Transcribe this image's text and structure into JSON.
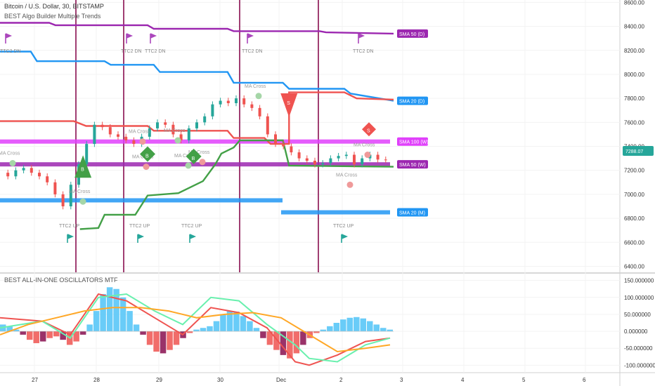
{
  "header": {
    "title": "Bitcoin / U.S. Dollar, 30, BITSTAMP",
    "subtitle": "BEST Algo Builder Multiple Trends"
  },
  "oscillator": {
    "title": "BEST ALL-IN-ONE OSCILLATORS MTF"
  },
  "price_label": {
    "value": "7288.07",
    "color": "#26a69a"
  },
  "colors": {
    "bull": "#26a69a",
    "bear": "#ef5350",
    "sma50d": "#9c27b0",
    "sma20d": "#2196f3",
    "sma100w": "#e040fb",
    "sma50w": "#9c27b0",
    "sma20m": "#2196f3",
    "vline": "#880e4f"
  },
  "chart_data": [
    {
      "type": "line",
      "name": "price",
      "x_ticks": [
        "27",
        "28",
        "29",
        "30",
        "Dec",
        "2",
        "3",
        "4",
        "5",
        "6"
      ],
      "y_ticks": [
        6400,
        6600,
        6800,
        7000,
        7200,
        7400,
        7600,
        7800,
        8000,
        8200,
        8400,
        8600
      ],
      "y_tick_labels": [
        "6400.00",
        "6600.00",
        "6800.00",
        "7000.00",
        "7200.00",
        "7400.00",
        "7600.00",
        "7800.00",
        "8000.00",
        "8200.00",
        "8400.00",
        "8600.00"
      ],
      "ylim": [
        6350,
        8620
      ],
      "close": [
        7180,
        7150,
        7200,
        7220,
        7180,
        7150,
        7100,
        7000,
        6900,
        7080,
        7250,
        7420,
        7580,
        7560,
        7500,
        7480,
        7450,
        7420,
        7480,
        7550,
        7600,
        7580,
        7500,
        7450,
        7550,
        7600,
        7650,
        7750,
        7780,
        7760,
        7800,
        7750,
        7720,
        7650,
        7500,
        7420,
        7400,
        7350,
        7300,
        7280,
        7250,
        7260,
        7300,
        7320,
        7330,
        7250,
        7300,
        7330,
        7290,
        7288
      ],
      "lines": [
        {
          "label": "SMA 50 (D)",
          "points": [
            [
              0,
              8430
            ],
            [
              8,
              8430
            ],
            [
              9,
              8410
            ],
            [
              24,
              8410
            ],
            [
              25,
              8380
            ],
            [
              37,
              8380
            ],
            [
              38,
              8360
            ],
            [
              52,
              8360
            ],
            [
              53,
              8350
            ],
            [
              64,
              8340
            ]
          ]
        },
        {
          "label": "SMA 20 (D)",
          "points": [
            [
              0,
              8190
            ],
            [
              5,
              8190
            ],
            [
              6,
              8110
            ],
            [
              17,
              8110
            ],
            [
              18,
              8080
            ],
            [
              25,
              8080
            ],
            [
              26,
              8020
            ],
            [
              37,
              8020
            ],
            [
              38,
              7930
            ],
            [
              46,
              7930
            ],
            [
              47,
              7880
            ],
            [
              56,
              7880
            ],
            [
              57,
              7840
            ],
            [
              64,
              7780
            ]
          ]
        },
        {
          "label": "",
          "points": [
            [
              0,
              7610
            ],
            [
              12,
              7610
            ],
            [
              14,
              7570
            ],
            [
              24,
              7570
            ],
            [
              25,
              7530
            ],
            [
              37,
              7530
            ],
            [
              38,
              7470
            ],
            [
              43,
              7470
            ],
            [
              44,
              7420
            ],
            [
              47,
              7420
            ],
            [
              47,
              7850
            ],
            [
              56,
              7850
            ],
            [
              58,
              7800
            ],
            [
              64,
              7790
            ]
          ]
        },
        {
          "label": "",
          "points": [
            [
              13,
              6710
            ],
            [
              16,
              6720
            ],
            [
              17,
              6830
            ],
            [
              22,
              6830
            ],
            [
              24,
              6990
            ],
            [
              29,
              7010
            ],
            [
              33,
              7110
            ],
            [
              35,
              7250
            ],
            [
              36,
              7340
            ],
            [
              38,
              7390
            ],
            [
              39,
              7450
            ],
            [
              46,
              7450
            ],
            [
              47,
              7240
            ],
            [
              64,
              7230
            ]
          ]
        }
      ],
      "levels": [
        {
          "label": "SMA 100 (W)",
          "value": 7440
        },
        {
          "label": "SMA 50 (W)",
          "value": 7250
        },
        {
          "label": "SMA 20 (M)",
          "value": 6950
        }
      ],
      "signals": [
        {
          "type": "S",
          "x": 47,
          "value": 7760
        },
        {
          "type": "S",
          "x": 60,
          "value": 7530
        },
        {
          "type": "B",
          "x": 13.5,
          "value": 7220
        },
        {
          "type": "B",
          "x": 24,
          "value": 7330
        },
        {
          "type": "B",
          "x": 31.5,
          "value": 7310
        }
      ],
      "annotations": [
        "MA Cross",
        "TTC2 DN",
        "TTC2 UP"
      ]
    },
    {
      "type": "line",
      "name": "oscillator",
      "y_ticks": [
        150,
        100,
        50,
        0,
        -50,
        -100
      ],
      "y_tick_labels": [
        "150.000000",
        "100.000000",
        "50.000000",
        "0.000000",
        "-50.000000",
        "-100.000000"
      ],
      "ylim": [
        -120,
        170
      ],
      "histogram": [
        20,
        15,
        5,
        -10,
        -25,
        -35,
        -30,
        -20,
        -15,
        -25,
        -40,
        -30,
        -10,
        20,
        60,
        110,
        130,
        125,
        100,
        60,
        20,
        -10,
        -40,
        -60,
        -65,
        -55,
        -40,
        -20,
        -5,
        5,
        10,
        15,
        30,
        50,
        60,
        58,
        45,
        30,
        10,
        -20,
        -40,
        -55,
        -70,
        -80,
        -65,
        -40,
        -20,
        -5,
        5,
        15,
        25,
        35,
        40,
        42,
        38,
        30,
        20,
        10,
        5
      ]
    }
  ]
}
